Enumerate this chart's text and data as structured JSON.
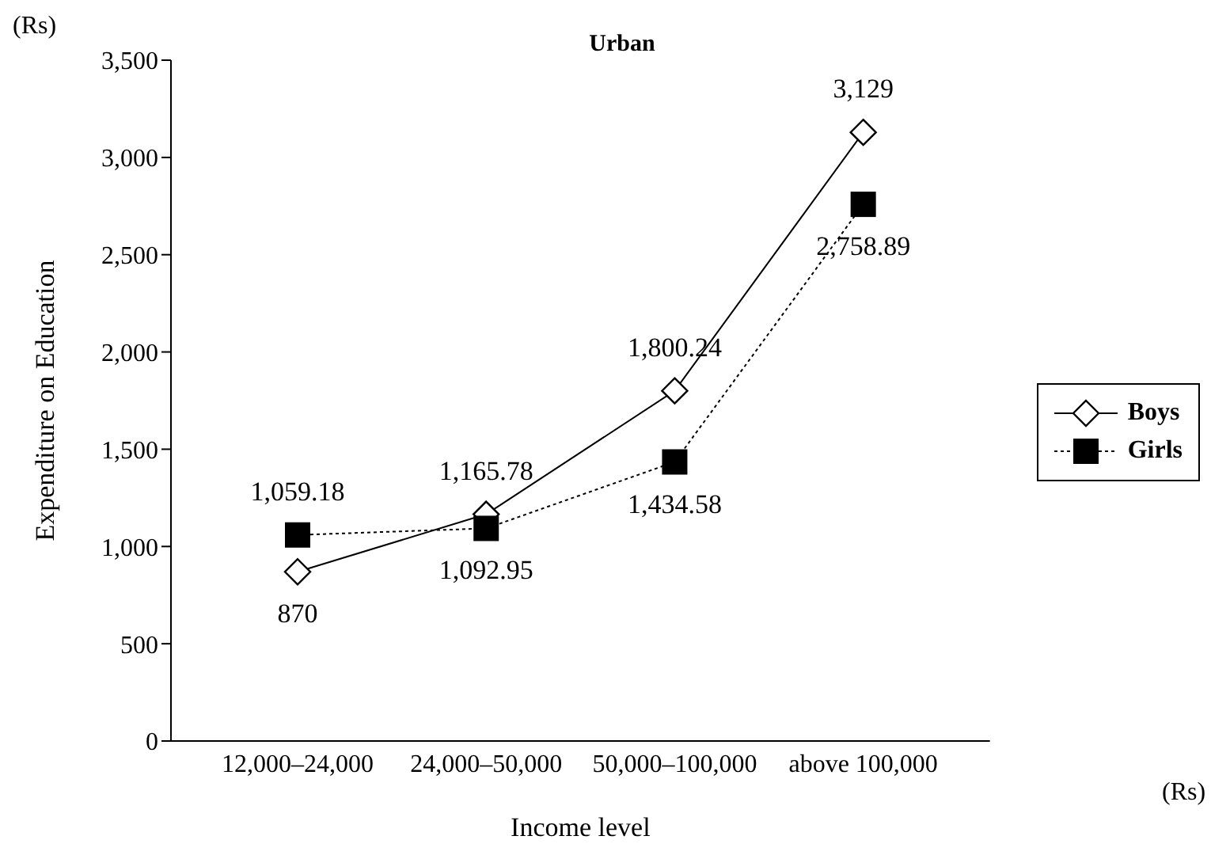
{
  "chart_data": {
    "type": "line",
    "title": "Urban",
    "xlabel": "Income level",
    "ylabel": "Expenditure on Education",
    "annotations": [
      "(Rs)",
      "(Rs)"
    ],
    "categories": [
      "12,000–24,000",
      "24,000–50,000",
      "50,000–100,000",
      "above 100,000"
    ],
    "series": [
      {
        "name": "Boys",
        "color": "#000000",
        "values": [
          870,
          1165.78,
          1800.24,
          3129
        ],
        "marker": "diamond",
        "line_style": "solid",
        "value_labels": [
          "870",
          "1,165.78",
          "1,800.24",
          "3,129"
        ]
      },
      {
        "name": "Girls",
        "color": "#000000",
        "values": [
          1059.18,
          1092.95,
          1434.58,
          2758.89
        ],
        "marker": "square",
        "line_style": "dotted",
        "value_labels": [
          "1,059.18",
          "1,092.95",
          "1,434.58",
          "2,758.89"
        ]
      }
    ],
    "ylim": [
      0,
      3500
    ],
    "yticks": [
      0,
      {
        "value": 500,
        "label": "500"
      },
      {
        "value": 1000,
        "label": "1,000"
      },
      {
        "value": 1500,
        "label": "1,500"
      },
      {
        "value": 2000,
        "label": "2,000"
      },
      {
        "value": 2500,
        "label": "2,500"
      },
      {
        "value": 3000,
        "label": "3,000"
      },
      {
        "value": 3500,
        "label": "3,500"
      }
    ],
    "grid": false,
    "legend": "right"
  }
}
